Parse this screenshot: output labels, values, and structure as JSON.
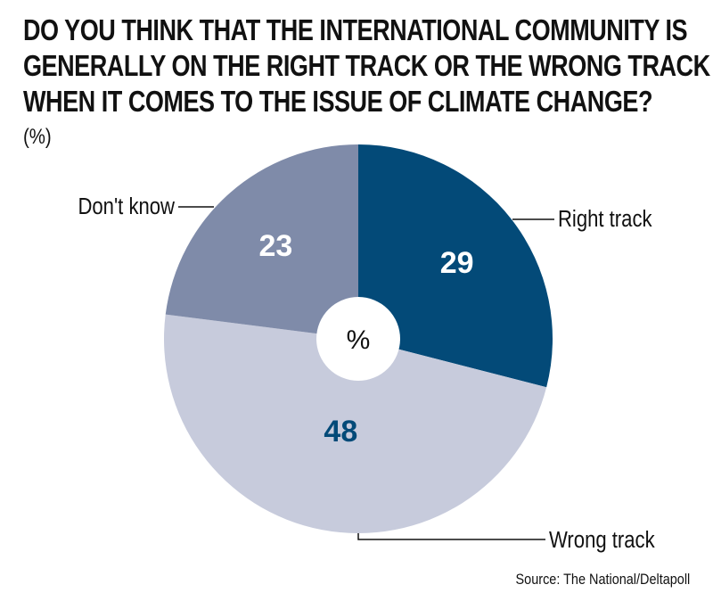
{
  "chart_data": {
    "type": "pie",
    "title_lines": [
      "DO YOU THINK THAT THE INTERNATIONAL COMMUNITY IS",
      "GENERALLY ON THE RIGHT TRACK OR THE WRONG TRACK",
      "WHEN IT COMES TO THE ISSUE OF CLIMATE CHANGE?"
    ],
    "unit": "(%)",
    "center_label": "%",
    "slices": [
      {
        "label": "Right track",
        "value": 29,
        "color": "#034a78",
        "label_color": "#ffffff"
      },
      {
        "label": "Wrong track",
        "value": 48,
        "color": "#c7cbdc",
        "label_color": "#034a78"
      },
      {
        "label": "Don't know",
        "value": 23,
        "color": "#7f8ba9",
        "label_color": "#ffffff"
      }
    ],
    "source": "Source: The National/Deltapoll"
  }
}
